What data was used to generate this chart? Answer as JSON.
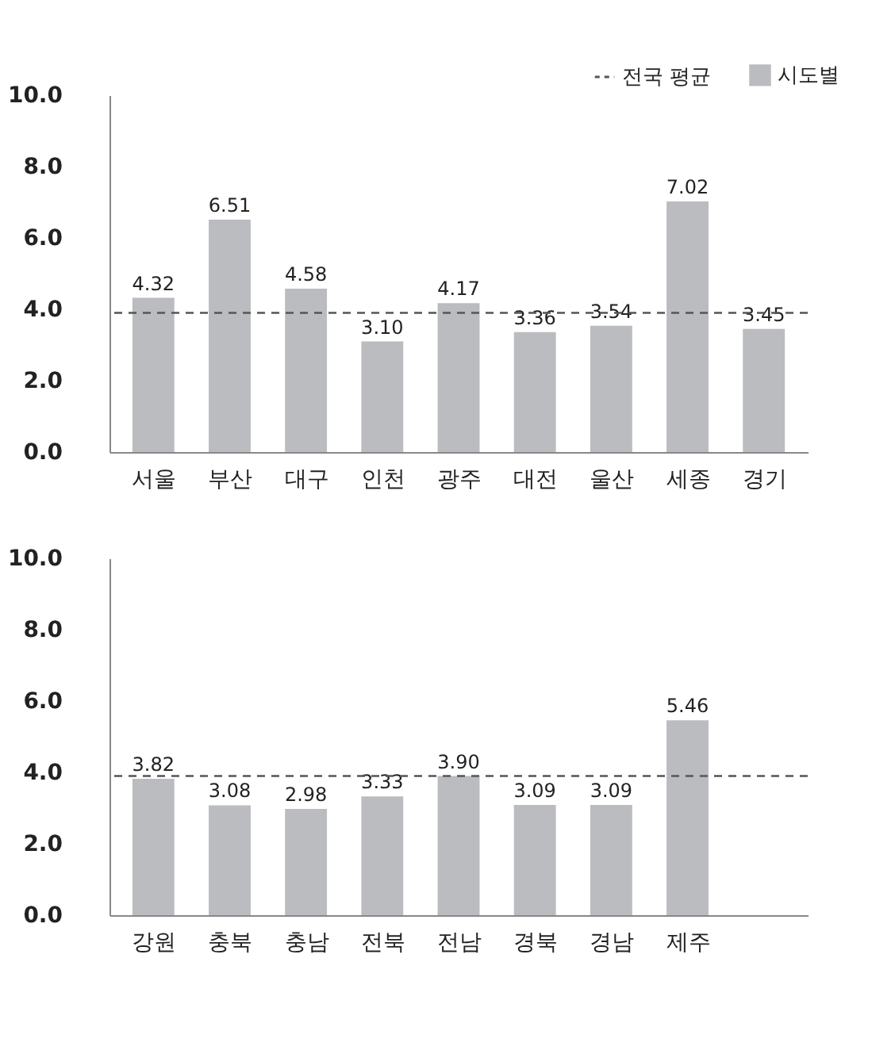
{
  "chart_data": [
    {
      "type": "bar",
      "categories": [
        "서울",
        "부산",
        "대구",
        "인천",
        "광주",
        "대전",
        "울산",
        "세종",
        "경기"
      ],
      "series": [
        {
          "name": "시도별",
          "color": "#bbbcc0",
          "values": [
            4.32,
            6.51,
            4.58,
            3.1,
            4.17,
            3.36,
            3.54,
            7.02,
            3.45
          ],
          "value_labels": [
            "4.32",
            "6.51",
            "4.58",
            "3.10",
            "4.17",
            "3.36",
            "3.54",
            "7.02",
            "3.45"
          ]
        }
      ],
      "ylim": [
        0,
        10
      ],
      "yticks": [
        {
          "value": 0,
          "label": "0.0"
        },
        {
          "value": 2,
          "label": "2.0"
        },
        {
          "value": 4,
          "label": "4.0"
        },
        {
          "value": 6,
          "label": "6.0"
        },
        {
          "value": 8,
          "label": "8.0"
        },
        {
          "value": 10,
          "label": "10.0"
        }
      ],
      "ref_lines": [
        {
          "axis": "y",
          "value": 3.9,
          "label": "전국 평균",
          "color": "#555555",
          "line_style": "dashed"
        }
      ],
      "grid": false,
      "legend": "top right"
    },
    {
      "type": "bar",
      "categories": [
        "강원",
        "충북",
        "충남",
        "전북",
        "전남",
        "경북",
        "경남",
        "제주",
        null
      ],
      "series": [
        {
          "color": "#bbbcc0",
          "values": [
            3.82,
            3.08,
            2.98,
            3.33,
            3.9,
            3.09,
            3.09,
            5.46,
            null
          ],
          "value_labels": [
            "3.82",
            "3.08",
            "2.98",
            "3.33",
            "3.90",
            "3.09",
            "3.09",
            "5.46",
            null
          ]
        }
      ],
      "ylim": [
        0,
        10
      ],
      "yticks": [
        {
          "value": 0,
          "label": "0.0"
        },
        {
          "value": 2,
          "label": "2.0"
        },
        {
          "value": 4,
          "label": "4.0"
        },
        {
          "value": 6,
          "label": "6.0"
        },
        {
          "value": 8,
          "label": "8.0"
        },
        {
          "value": 10,
          "label": "10.0"
        }
      ],
      "ref_lines": [
        {
          "axis": "y",
          "value": 3.9,
          "color": "#555555",
          "line_style": "dashed"
        }
      ],
      "grid": false
    }
  ]
}
